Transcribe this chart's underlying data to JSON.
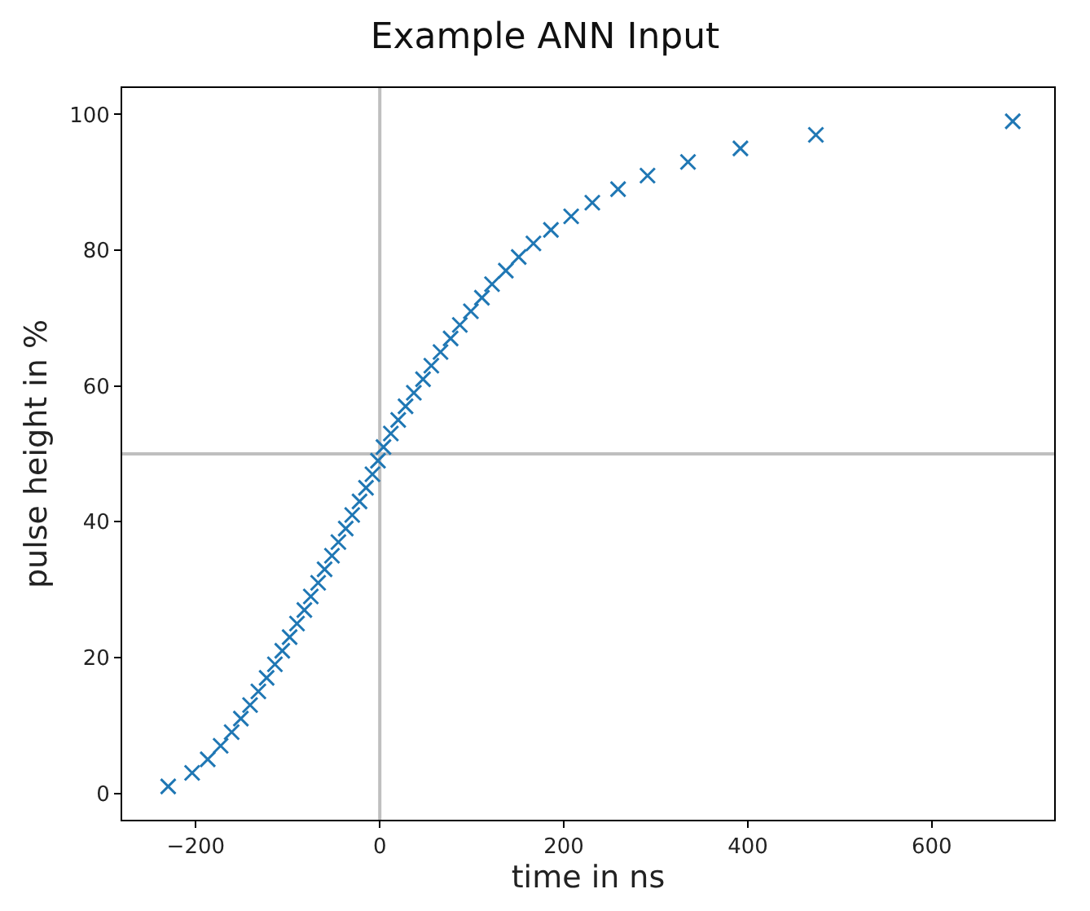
{
  "chart_data": {
    "type": "scatter",
    "title": "Example ANN Input",
    "xlabel": "time in ns",
    "ylabel": "pulse height in %",
    "x": [
      -230,
      -204,
      -187,
      -173,
      -161,
      -151,
      -141,
      -132,
      -123,
      -114,
      -106,
      -98,
      -90,
      -82,
      -75,
      -67,
      -60,
      -52,
      -45,
      -37,
      -30,
      -22,
      -15,
      -8,
      -2,
      4,
      12,
      20,
      28,
      37,
      47,
      56,
      66,
      77,
      87,
      99,
      111,
      122,
      137,
      151,
      167,
      186,
      208,
      231,
      259,
      291,
      335,
      392,
      474,
      688
    ],
    "series": [
      {
        "color": "#1f77b4",
        "values": [
          1,
          3,
          5,
          7,
          9,
          11,
          13,
          15,
          17,
          19,
          21,
          23,
          25,
          27,
          29,
          31,
          33,
          35,
          37,
          39,
          41,
          43,
          45,
          47,
          49,
          51,
          53,
          55,
          57,
          59,
          61,
          63,
          65,
          67,
          69,
          71,
          73,
          75,
          77,
          79,
          81,
          83,
          85,
          87,
          89,
          91,
          93,
          95,
          97,
          99
        ]
      }
    ],
    "marker": "cross",
    "grid": false,
    "xlim": [
      -280,
      733
    ],
    "xticks": [
      -200,
      0,
      200,
      400,
      600
    ],
    "ylim": [
      -3.9,
      103.9
    ],
    "yticks": [
      0,
      20,
      40,
      60,
      80,
      100
    ],
    "ref_lines": [
      {
        "axis": "x",
        "value": 0,
        "color": "#bfbfbf"
      },
      {
        "axis": "y",
        "value": 50,
        "color": "#bfbfbf"
      }
    ]
  }
}
